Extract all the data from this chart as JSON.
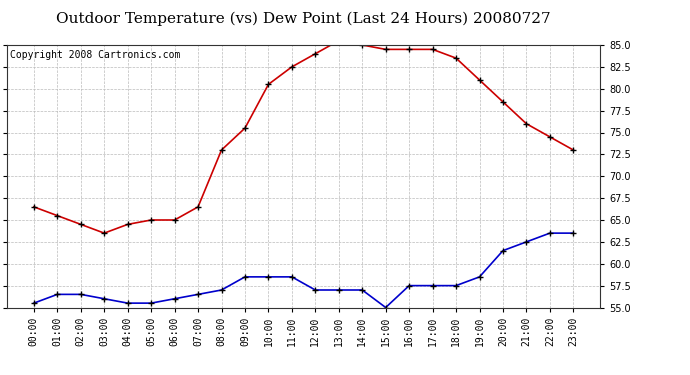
{
  "title": "Outdoor Temperature (vs) Dew Point (Last 24 Hours) 20080727",
  "copyright_text": "Copyright 2008 Cartronics.com",
  "hours": [
    "00:00",
    "01:00",
    "02:00",
    "03:00",
    "04:00",
    "05:00",
    "06:00",
    "07:00",
    "08:00",
    "09:00",
    "10:00",
    "11:00",
    "12:00",
    "13:00",
    "14:00",
    "15:00",
    "16:00",
    "17:00",
    "18:00",
    "19:00",
    "20:00",
    "21:00",
    "22:00",
    "23:00"
  ],
  "temp": [
    66.5,
    65.5,
    64.5,
    63.5,
    64.5,
    65.0,
    65.0,
    66.5,
    73.0,
    75.5,
    80.5,
    82.5,
    84.0,
    85.5,
    85.0,
    84.5,
    84.5,
    84.5,
    83.5,
    81.0,
    78.5,
    76.0,
    74.5,
    73.0
  ],
  "dewpoint": [
    55.5,
    56.5,
    56.5,
    56.0,
    55.5,
    55.5,
    56.0,
    56.5,
    57.0,
    58.5,
    58.5,
    58.5,
    57.0,
    57.0,
    57.0,
    55.0,
    57.5,
    57.5,
    57.5,
    58.5,
    61.5,
    62.5,
    63.5,
    63.5
  ],
  "ylim": [
    55.0,
    85.0
  ],
  "yticks": [
    55.0,
    57.5,
    60.0,
    62.5,
    65.0,
    67.5,
    70.0,
    72.5,
    75.0,
    77.5,
    80.0,
    82.5,
    85.0
  ],
  "temp_color": "#cc0000",
  "dew_color": "#0000cc",
  "bg_color": "#ffffff",
  "grid_color": "#bbbbbb",
  "title_fontsize": 11,
  "copyright_fontsize": 7,
  "tick_fontsize": 7,
  "ytick_fontsize": 7
}
